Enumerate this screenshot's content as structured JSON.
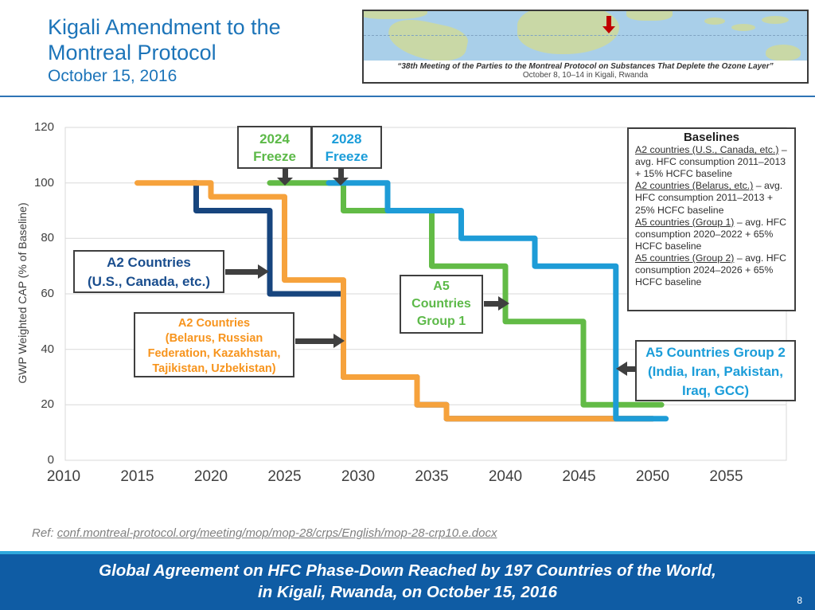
{
  "header": {
    "title_line1": "Kigali Amendment to the",
    "title_line2": "Montreal Protocol",
    "date": "October 15, 2016"
  },
  "map_card": {
    "caption_line1": "“38th Meeting of the Parties to the Montreal Protocol on Substances That Deplete the Ozone Layer”",
    "caption_line2": "October 8, 10–14 in Kigali, Rwanda"
  },
  "chart_data": {
    "type": "line",
    "subtype": "step",
    "title": "",
    "xlabel": "",
    "ylabel": "GWP Weighted CAP (% of Baseline)",
    "xlim": [
      2010,
      2057
    ],
    "ylim": [
      0,
      120
    ],
    "x_ticks": [
      2010,
      2015,
      2020,
      2025,
      2030,
      2035,
      2040,
      2045,
      2050,
      2055
    ],
    "y_ticks": [
      0,
      20,
      40,
      60,
      80,
      100,
      120
    ],
    "grid": true,
    "grid_color": "#d9d9d9",
    "series": [
      {
        "name": "A2 Countries (U.S., Canada, etc.)",
        "color": "#17457E",
        "steps": [
          [
            2018.8,
            100
          ],
          [
            2019,
            100
          ],
          [
            2019,
            90
          ],
          [
            2024,
            90
          ],
          [
            2024,
            60
          ],
          [
            2029,
            60
          ],
          [
            2029,
            30
          ],
          [
            2034,
            30
          ],
          [
            2034,
            20
          ],
          [
            2036,
            20
          ],
          [
            2036,
            15
          ],
          [
            2050,
            15
          ]
        ]
      },
      {
        "name": "A2 Countries (Belarus, Russian Federation, Kazakhstan, Tajikistan, Uzbekistan)",
        "color": "#F6A23C",
        "steps": [
          [
            2015,
            100
          ],
          [
            2020,
            100
          ],
          [
            2020,
            95
          ],
          [
            2025,
            95
          ],
          [
            2025,
            65
          ],
          [
            2029,
            65
          ],
          [
            2029,
            30
          ],
          [
            2034,
            30
          ],
          [
            2034,
            20
          ],
          [
            2036,
            20
          ],
          [
            2036,
            15
          ],
          [
            2050,
            15
          ]
        ]
      },
      {
        "name": "A5 Countries Group 1",
        "color": "#62BB46",
        "steps": [
          [
            2024,
            100
          ],
          [
            2029,
            100
          ],
          [
            2029,
            90
          ],
          [
            2035,
            90
          ],
          [
            2035,
            70
          ],
          [
            2040,
            70
          ],
          [
            2040,
            50
          ],
          [
            2045.3,
            50
          ],
          [
            2045.3,
            20
          ],
          [
            2050.6,
            20
          ]
        ]
      },
      {
        "name": "A5 Countries Group 2 (India, Iran, Pakistan, Iraq, GCC)",
        "color": "#1E9CD7",
        "steps": [
          [
            2028,
            100
          ],
          [
            2032,
            100
          ],
          [
            2032,
            90
          ],
          [
            2037,
            90
          ],
          [
            2037,
            80
          ],
          [
            2042,
            80
          ],
          [
            2042,
            70
          ],
          [
            2047.5,
            70
          ],
          [
            2047.5,
            15
          ],
          [
            2050.9,
            15
          ]
        ]
      }
    ]
  },
  "annotations": {
    "freeze_2024": {
      "label": "2024 Freeze",
      "color": "#5CB948"
    },
    "freeze_2028": {
      "label": "2028 Freeze",
      "color": "#1B9DD9"
    },
    "callout_a2_us": {
      "color": "#1A4E8E",
      "lines": [
        "A2 Countries",
        "(U.S., Canada, etc.)"
      ]
    },
    "callout_a2_belarus": {
      "color": "#F7941D",
      "lines": [
        "A2 Countries",
        "(Belarus, Russian",
        "Federation, Kazakhstan,",
        "Tajikistan, Uzbekistan)"
      ]
    },
    "callout_a5_g1": {
      "color": "#5CB948",
      "lines": [
        "A5",
        "Countries",
        "Group 1"
      ]
    },
    "callout_a5_g2": {
      "color": "#1B9DD9",
      "lines": [
        "A5 Countries Group 2",
        "(India, Iran, Pakistan,",
        "Iraq, GCC)"
      ]
    }
  },
  "baselines": {
    "title": "Baselines",
    "items": [
      {
        "lead": "A2 countries (U.S., Canada, etc.)",
        "rest": " – avg. HFC consumption 2011–2013 + 15% HCFC baseline"
      },
      {
        "lead": "A2 countries (Belarus, etc.)",
        "rest": " – avg. HFC consumption 2011–2013 + 25% HCFC baseline"
      },
      {
        "lead": "A5 countries (Group 1)",
        "rest": " – avg. HFC consumption 2020–2022 + 65% HCFC baseline"
      },
      {
        "lead": "A5 countries (Group 2)",
        "rest": " – avg. HFC consumption 2024–2026 + 65% HCFC baseline"
      }
    ]
  },
  "ref": {
    "prefix": "Ref: ",
    "link": "conf.montreal-protocol.org/meeting/mop/mop-28/crps/English/mop-28-crp10.e.docx"
  },
  "banner": {
    "line1": "Global Agreement on HFC Phase-Down Reached by 197 Countries of the World,",
    "line2": "in Kigali, Rwanda, on October 15, 2016",
    "page_number": "8"
  }
}
